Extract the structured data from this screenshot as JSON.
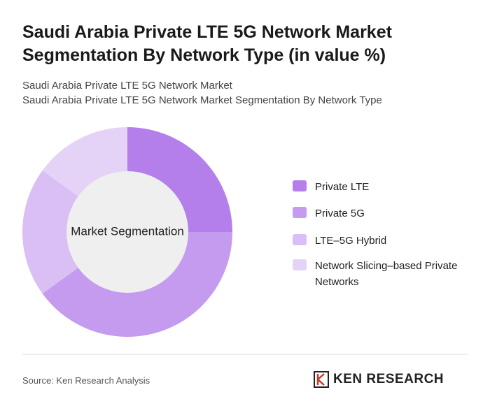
{
  "chart_data": {
    "type": "donut",
    "title": "Saudi Arabia Private LTE 5G Network Market Segmentation By Network Type (in value %)",
    "subtitle": [
      "Saudi Arabia Private LTE 5G Network Market",
      "Saudi Arabia Private LTE 5G Network Market Segmentation By Network Type"
    ],
    "center_label": "Market Segmentation",
    "categories": [
      "Private LTE",
      "Private 5G",
      "LTE–5G Hybrid",
      "Network Slicing–based Private Networks"
    ],
    "values": [
      25,
      40,
      20,
      15
    ],
    "colors": [
      "#b47fea",
      "#c59bef",
      "#d9bff4",
      "#e5d3f7"
    ]
  },
  "footer": {
    "source": "Source: Ken Research Analysis",
    "logo": "KEN RESEARCH"
  }
}
